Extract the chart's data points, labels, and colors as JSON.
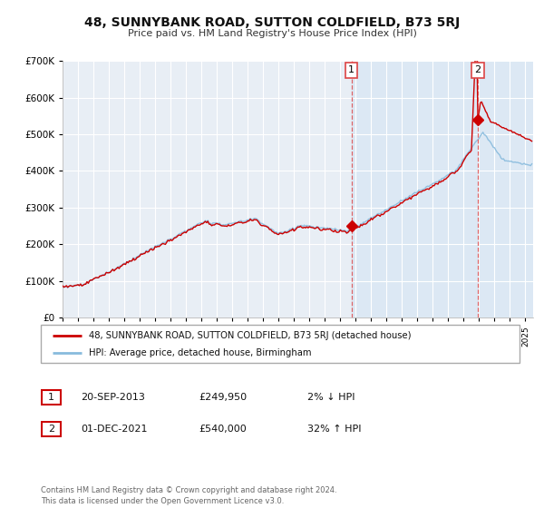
{
  "title": "48, SUNNYBANK ROAD, SUTTON COLDFIELD, B73 5RJ",
  "subtitle": "Price paid vs. HM Land Registry's House Price Index (HPI)",
  "ylim": [
    0,
    700000
  ],
  "xlim_start": 1995.0,
  "xlim_end": 2025.5,
  "yticks": [
    0,
    100000,
    200000,
    300000,
    400000,
    500000,
    600000,
    700000
  ],
  "ytick_labels": [
    "£0",
    "£100K",
    "£200K",
    "£300K",
    "£400K",
    "£500K",
    "£600K",
    "£700K"
  ],
  "xtick_years": [
    1995,
    1996,
    1997,
    1998,
    1999,
    2000,
    2001,
    2002,
    2003,
    2004,
    2005,
    2006,
    2007,
    2008,
    2009,
    2010,
    2011,
    2012,
    2013,
    2014,
    2015,
    2016,
    2017,
    2018,
    2019,
    2020,
    2021,
    2022,
    2023,
    2024,
    2025
  ],
  "bg_color": "#e8eef5",
  "fig_bg_color": "#ffffff",
  "grid_color": "#ffffff",
  "sale1_x": 2013.72,
  "sale1_y": 249950,
  "sale2_x": 2021.92,
  "sale2_y": 540000,
  "vline1_x": 2013.72,
  "vline2_x": 2021.92,
  "legend1_label": "48, SUNNYBANK ROAD, SUTTON COLDFIELD, B73 5RJ (detached house)",
  "legend2_label": "HPI: Average price, detached house, Birmingham",
  "info1_date": "20-SEP-2013",
  "info1_price": "£249,950",
  "info1_hpi": "2% ↓ HPI",
  "info2_date": "01-DEC-2021",
  "info2_price": "£540,000",
  "info2_hpi": "32% ↑ HPI",
  "footer": "Contains HM Land Registry data © Crown copyright and database right 2024.\nThis data is licensed under the Open Government Licence v3.0.",
  "line_color_red": "#cc0000",
  "line_color_blue": "#88bbdd",
  "shade_color": "#dce8f4",
  "vline_color": "#dd4444"
}
